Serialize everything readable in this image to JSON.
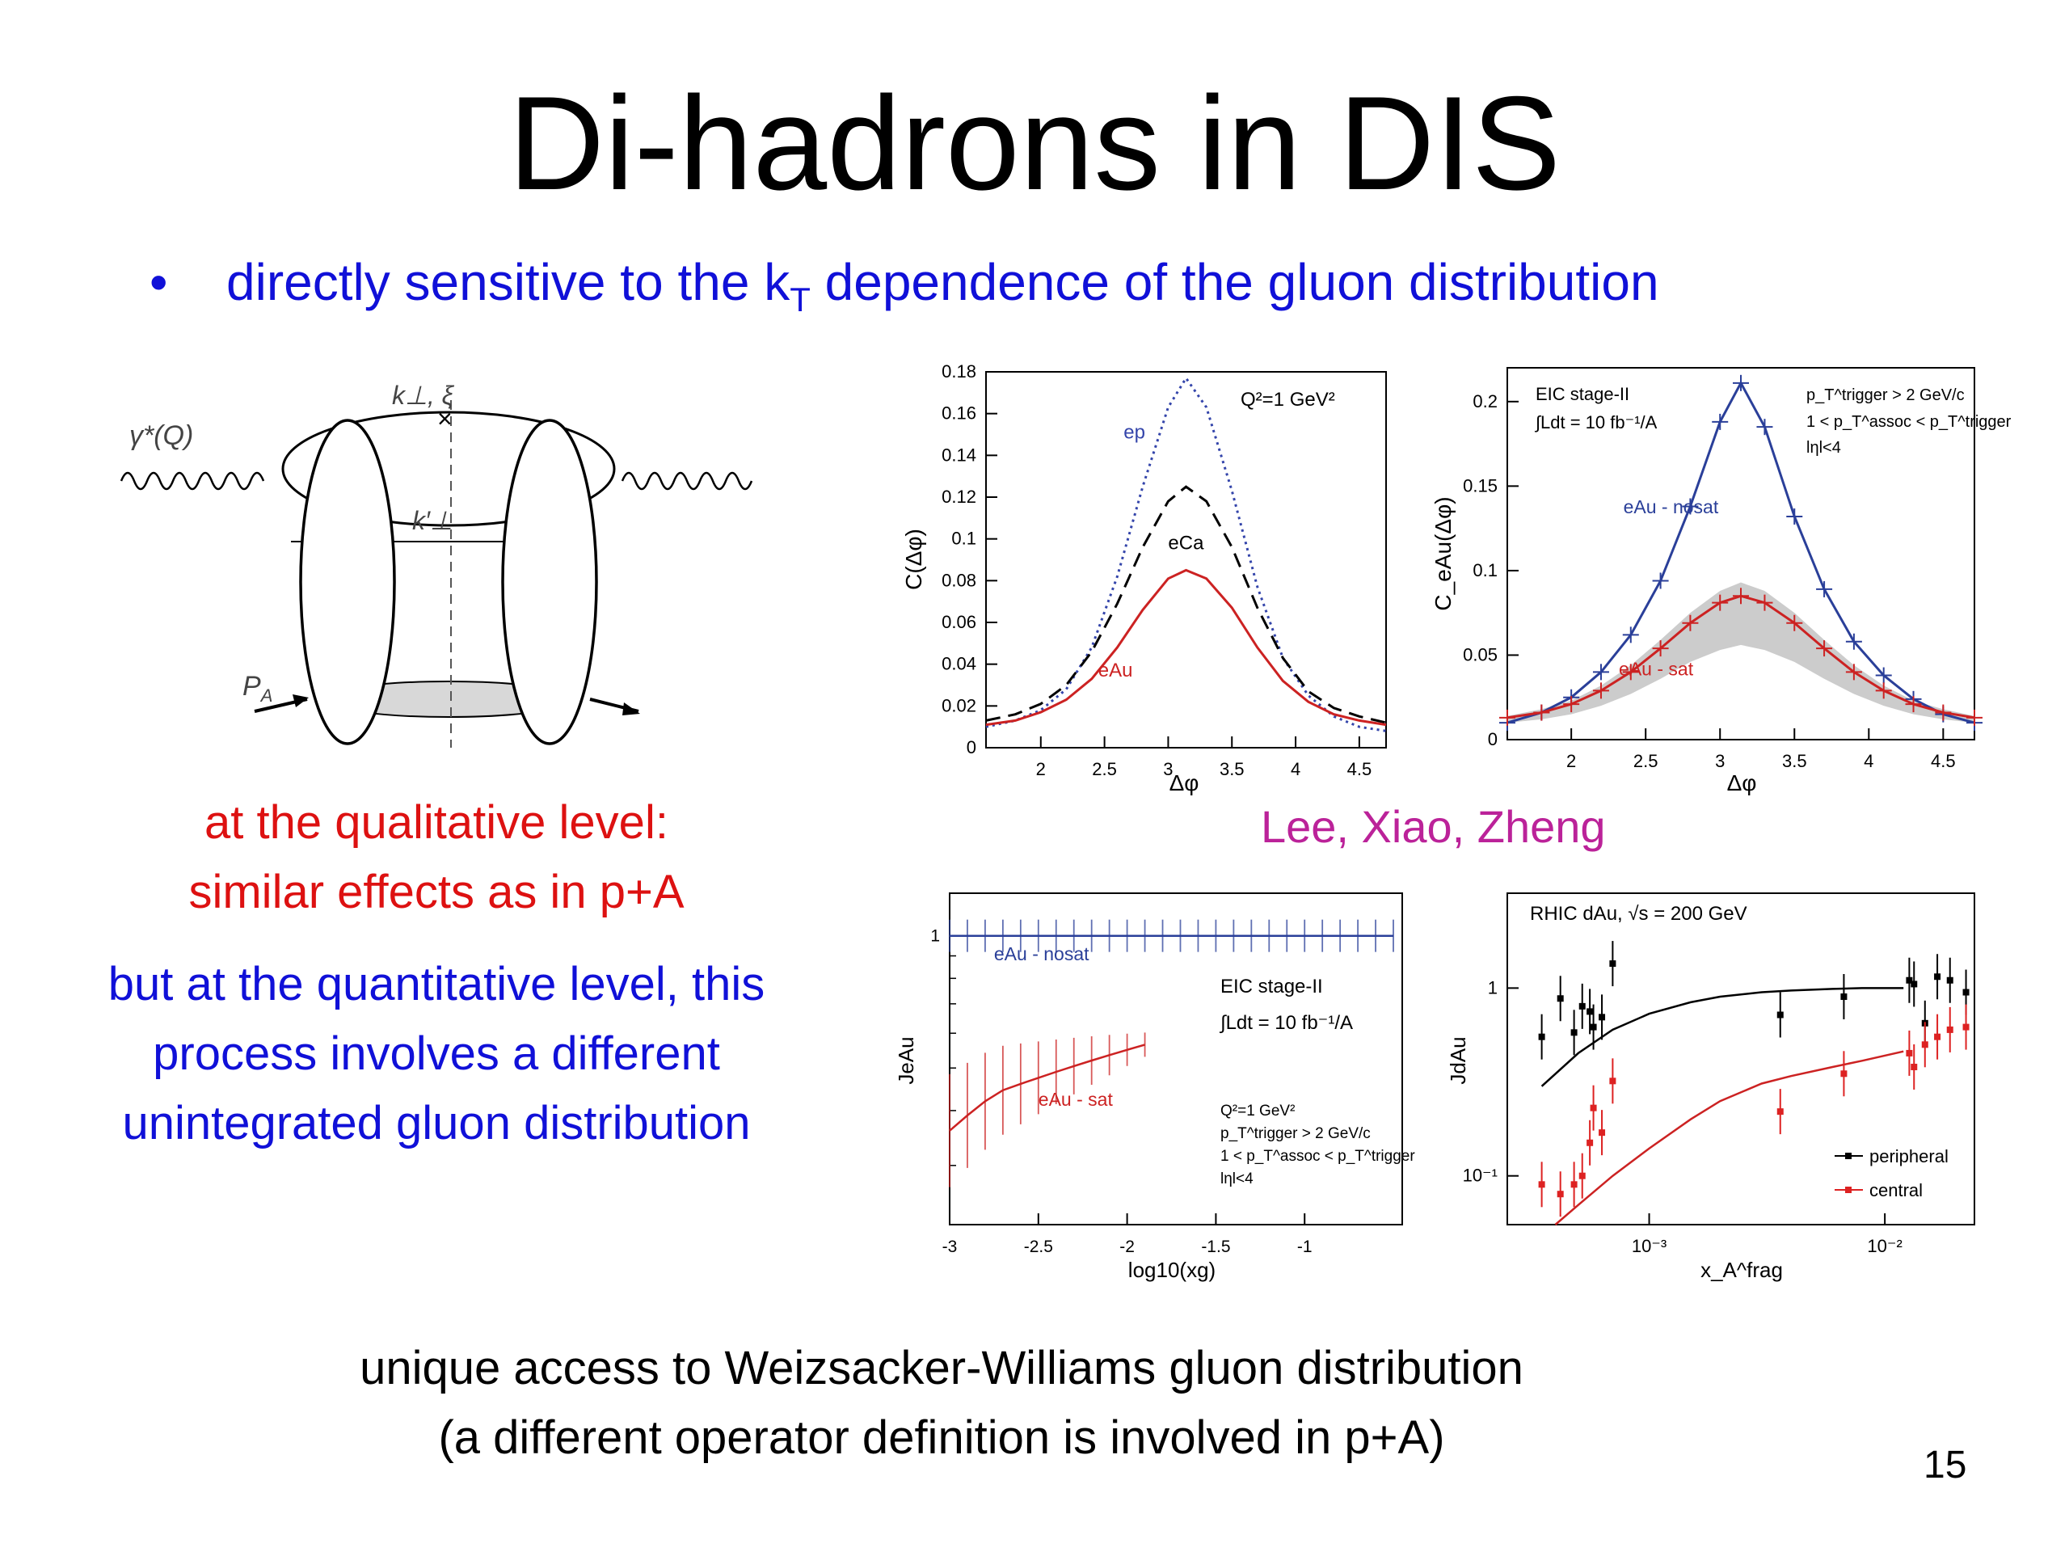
{
  "slide": {
    "title": "Di-hadrons in DIS",
    "bullet_marker": "•",
    "bullet_pre": "directly sensitive to the k",
    "bullet_sub": "T",
    "bullet_post": " dependence of the gluon distribution",
    "qualitative_line1": "at the qualitative level:",
    "qualitative_line2": "similar effects as in p+A",
    "quantitative_line1": "but at the quantitative level, this",
    "quantitative_line2": "process involves a different",
    "quantitative_line3": "unintegrated gluon distribution",
    "credit": "Lee, Xiao, Zheng",
    "footer_line1": "unique access to Weizsacker-Williams gluon distribution",
    "footer_line2": "(a different operator definition is involved in p+A)",
    "page_number": "15"
  },
  "diagram": {
    "photon_label": "γ*(Q)",
    "kperp_label": "k⊥, ξ",
    "kprime_label": "k′⊥",
    "proton_label": "P",
    "proton_sub": "A"
  },
  "chart_data": [
    {
      "type": "line",
      "xlabel": "Δφ",
      "ylabel": "C(Δφ)",
      "annotation": "Q²=1 GeV²",
      "xlim": [
        1.57,
        4.71
      ],
      "ylim": [
        0,
        0.18
      ],
      "xticks": [
        "2",
        "2.5",
        "3",
        "3.5",
        "4",
        "4.5"
      ],
      "yticks": [
        "0",
        "0.02",
        "0.04",
        "0.06",
        "0.08",
        "0.1",
        "0.12",
        "0.14",
        "0.16",
        "0.18"
      ],
      "x": [
        1.57,
        1.8,
        2.0,
        2.2,
        2.4,
        2.6,
        2.8,
        3.0,
        3.14,
        3.3,
        3.5,
        3.7,
        3.9,
        4.1,
        4.3,
        4.5,
        4.71
      ],
      "series": [
        {
          "name": "ep",
          "color": "#3344aa",
          "dash": "dot",
          "values": [
            0.01,
            0.013,
            0.018,
            0.028,
            0.048,
            0.082,
            0.125,
            0.163,
            0.177,
            0.163,
            0.123,
            0.077,
            0.043,
            0.025,
            0.015,
            0.01,
            0.008
          ]
        },
        {
          "name": "eCa",
          "color": "#000000",
          "dash": "dash",
          "values": [
            0.013,
            0.016,
            0.021,
            0.03,
            0.046,
            0.069,
            0.096,
            0.118,
            0.125,
            0.118,
            0.096,
            0.067,
            0.043,
            0.027,
            0.019,
            0.015,
            0.012
          ]
        },
        {
          "name": "eAu",
          "color": "#cc2222",
          "dash": "solid",
          "values": [
            0.011,
            0.013,
            0.017,
            0.023,
            0.033,
            0.048,
            0.066,
            0.081,
            0.085,
            0.081,
            0.067,
            0.048,
            0.032,
            0.022,
            0.016,
            0.013,
            0.011
          ]
        }
      ]
    },
    {
      "type": "line",
      "xlabel": "Δφ",
      "ylabel": "C_eAu(Δφ)",
      "annotations": [
        "EIC stage-II",
        "∫Ldt = 10 fb⁻¹/A",
        "p_T^trigger > 2 GeV/c",
        "1 < p_T^assoc < p_T^trigger",
        "lηl<4"
      ],
      "xlim": [
        1.57,
        4.71
      ],
      "ylim": [
        0,
        0.22
      ],
      "xticks": [
        "2",
        "2.5",
        "3",
        "3.5",
        "4",
        "4.5"
      ],
      "yticks": [
        "0",
        "0.05",
        "0.1",
        "0.15",
        "0.2"
      ],
      "x": [
        1.57,
        1.8,
        2.0,
        2.2,
        2.4,
        2.6,
        2.8,
        3.0,
        3.14,
        3.3,
        3.5,
        3.7,
        3.9,
        4.1,
        4.3,
        4.5,
        4.71
      ],
      "series": [
        {
          "name": "eAu - nosat",
          "color": "#2a3f99",
          "values": [
            0.01,
            0.016,
            0.025,
            0.04,
            0.062,
            0.094,
            0.138,
            0.188,
            0.211,
            0.185,
            0.132,
            0.089,
            0.058,
            0.038,
            0.024,
            0.015,
            0.01
          ]
        },
        {
          "name": "eAu - sat",
          "color": "#cc2222",
          "values": [
            0.013,
            0.016,
            0.021,
            0.029,
            0.04,
            0.054,
            0.069,
            0.081,
            0.085,
            0.081,
            0.069,
            0.054,
            0.04,
            0.029,
            0.021,
            0.016,
            0.013
          ]
        }
      ],
      "band": {
        "color": "#cccccc",
        "lower": [
          0.01,
          0.012,
          0.015,
          0.02,
          0.027,
          0.036,
          0.046,
          0.053,
          0.056,
          0.053,
          0.046,
          0.036,
          0.027,
          0.02,
          0.015,
          0.012,
          0.01
        ],
        "upper": [
          0.014,
          0.018,
          0.023,
          0.032,
          0.044,
          0.059,
          0.075,
          0.088,
          0.093,
          0.088,
          0.075,
          0.059,
          0.044,
          0.032,
          0.023,
          0.018,
          0.014
        ]
      }
    },
    {
      "type": "line",
      "xlabel": "log10(xg)",
      "ylabel": "JeAu",
      "annotations": [
        "EIC stage-II",
        "∫Ldt = 10 fb⁻¹/A",
        "Q²=1 GeV²",
        "p_T^trigger > 2 GeV/c",
        "1 < p_T^assoc < p_T^trigger",
        "lηl<4"
      ],
      "xlim": [
        -3,
        -0.45
      ],
      "ylim": [
        0.22,
        1.25
      ],
      "log_y": true,
      "xticks": [
        "-3",
        "-2.5",
        "-2",
        "-1.5",
        "-1"
      ],
      "yticks": [
        "1"
      ],
      "series": [
        {
          "name": "eAu - nosat",
          "color": "#2a3f99",
          "x": [
            -3.0,
            -2.9,
            -2.8,
            -2.7,
            -2.6,
            -2.5,
            -2.4,
            -2.3,
            -2.2,
            -2.1,
            -2.0,
            -1.9,
            -1.8,
            -1.7,
            -1.6,
            -1.5,
            -1.4,
            -1.3,
            -1.2,
            -1.1,
            -1.0,
            -0.9,
            -0.8,
            -0.7,
            -0.6,
            -0.5
          ],
          "values": [
            1,
            1,
            1,
            1,
            1,
            1,
            1,
            1,
            1,
            1,
            1,
            1,
            1,
            1,
            1,
            1,
            1,
            1,
            1,
            1,
            1,
            1,
            1,
            1,
            1,
            1
          ]
        },
        {
          "name": "eAu - sat",
          "color": "#cc2222",
          "x": [
            -3.0,
            -2.9,
            -2.8,
            -2.7,
            -2.6,
            -2.5,
            -2.4,
            -2.3,
            -2.2,
            -2.1,
            -2.0,
            -1.9
          ],
          "values": [
            0.36,
            0.39,
            0.42,
            0.445,
            0.46,
            0.475,
            0.49,
            0.505,
            0.52,
            0.535,
            0.55,
            0.565
          ]
        }
      ]
    },
    {
      "type": "scatter",
      "title": "RHIC dAu, √s = 200 GeV",
      "xlabel": "x_A^frag",
      "ylabel": "JdAu",
      "log_x": true,
      "log_y": true,
      "xlim": [
        0.00025,
        0.024
      ],
      "ylim": [
        0.055,
        3.2
      ],
      "xticks": [
        "10⁻³",
        "10⁻²"
      ],
      "yticks": [
        "10⁻¹",
        "1"
      ],
      "series": [
        {
          "name": "peripheral",
          "color": "#000000",
          "x": [
            0.00035,
            0.00042,
            0.00048,
            0.00052,
            0.00056,
            0.00058,
            0.00063,
            0.0007,
            0.0036,
            0.0067,
            0.0127,
            0.0133,
            0.0148,
            0.0167,
            0.0189,
            0.0221
          ],
          "values": [
            0.55,
            0.88,
            0.58,
            0.8,
            0.75,
            0.62,
            0.7,
            1.35,
            0.72,
            0.9,
            1.1,
            1.05,
            0.65,
            1.15,
            1.1,
            0.95
          ]
        },
        {
          "name": "central",
          "color": "#dd2222",
          "x": [
            0.00035,
            0.00042,
            0.00048,
            0.00052,
            0.00056,
            0.00058,
            0.00063,
            0.0007,
            0.0036,
            0.0067,
            0.0127,
            0.0133,
            0.0148,
            0.0167,
            0.0189,
            0.0221
          ],
          "values": [
            0.09,
            0.08,
            0.09,
            0.1,
            0.15,
            0.23,
            0.17,
            0.32,
            0.22,
            0.35,
            0.45,
            0.38,
            0.5,
            0.55,
            0.6,
            0.62
          ]
        }
      ],
      "curves": [
        {
          "name": "peripheral-fit",
          "color": "#000000",
          "x": [
            0.00035,
            0.0005,
            0.0007,
            0.001,
            0.0015,
            0.002,
            0.003,
            0.004,
            0.006,
            0.008,
            0.012
          ],
          "values": [
            0.3,
            0.45,
            0.6,
            0.73,
            0.84,
            0.9,
            0.95,
            0.97,
            0.99,
            1.0,
            1.0
          ]
        },
        {
          "name": "central-fit",
          "color": "#cc2222",
          "x": [
            0.0004,
            0.0005,
            0.0007,
            0.001,
            0.0015,
            0.002,
            0.003,
            0.004,
            0.006,
            0.008,
            0.012
          ],
          "values": [
            0.055,
            0.07,
            0.1,
            0.14,
            0.2,
            0.25,
            0.31,
            0.34,
            0.38,
            0.41,
            0.46
          ]
        }
      ]
    }
  ]
}
